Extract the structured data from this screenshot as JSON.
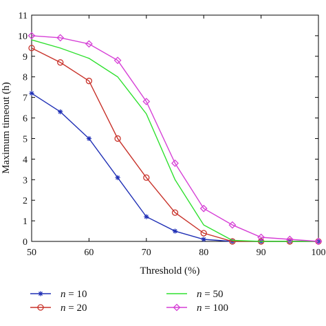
{
  "chart_data": {
    "type": "line",
    "xlabel": "Threshold (%)",
    "ylabel": "Maximum timeout (h)",
    "xlim": [
      50,
      100
    ],
    "ylim": [
      0,
      11
    ],
    "xticks": [
      50,
      60,
      70,
      80,
      90,
      100
    ],
    "yticks": [
      0,
      1,
      2,
      3,
      4,
      5,
      6,
      7,
      8,
      9,
      10,
      11
    ],
    "grid": false,
    "legend_position": "bottom",
    "x": [
      50,
      55,
      60,
      65,
      70,
      75,
      80,
      85,
      90,
      95,
      100
    ],
    "series": [
      {
        "name": "n = 10",
        "var": "n",
        "eq": " = ",
        "num": "10",
        "color": "#1f2fb5",
        "marker": "star",
        "values": [
          7.2,
          6.3,
          5.0,
          3.1,
          1.2,
          0.5,
          0.1,
          0.0,
          0.0,
          0.0,
          0.0
        ]
      },
      {
        "name": "n = 20",
        "var": "n",
        "eq": " = ",
        "num": "20",
        "color": "#c8322a",
        "marker": "circle",
        "values": [
          9.4,
          8.7,
          7.8,
          5.0,
          3.1,
          1.4,
          0.4,
          0.0,
          0.0,
          0.0,
          0.0
        ]
      },
      {
        "name": "n = 50",
        "var": "n",
        "eq": " = ",
        "num": "50",
        "color": "#2ee02e",
        "marker": "none",
        "values": [
          9.8,
          9.4,
          8.9,
          8.0,
          6.2,
          3.0,
          0.8,
          0.05,
          0.0,
          0.0,
          0.0
        ]
      },
      {
        "name": "n = 100",
        "var": "n",
        "eq": " = ",
        "num": "100",
        "color": "#d63fd6",
        "marker": "diamond",
        "values": [
          10.0,
          9.9,
          9.6,
          8.8,
          6.8,
          3.8,
          1.6,
          0.8,
          0.2,
          0.1,
          0.0
        ]
      }
    ]
  }
}
